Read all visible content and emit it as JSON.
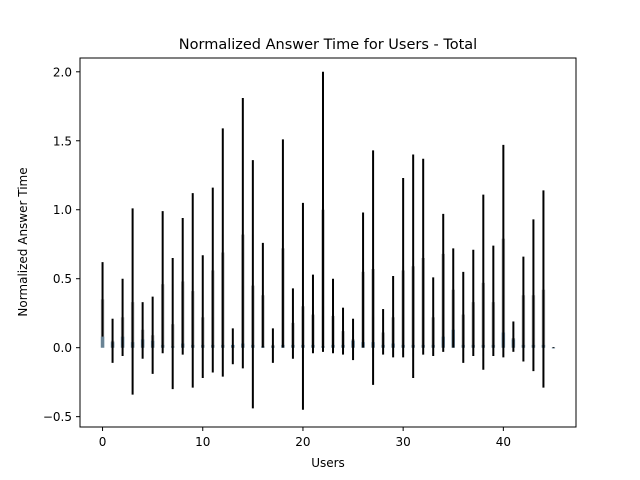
{
  "chart_data": {
    "type": "bar",
    "title": "Normalized Answer Time for Users - Total",
    "xlabel": "Users",
    "ylabel": "Normalized Answer Time",
    "xlim": [
      -2.25,
      47.25
    ],
    "ylim": [
      -0.575,
      2.1
    ],
    "xticks": [
      0,
      10,
      20,
      30,
      40
    ],
    "xtick_labels": [
      "0",
      "10",
      "20",
      "30",
      "40"
    ],
    "yticks": [
      -0.5,
      0.0,
      0.5,
      1.0,
      1.5,
      2.0
    ],
    "ytick_labels": [
      "−0.5",
      "0.0",
      "0.5",
      "1.0",
      "1.5",
      "2.0"
    ],
    "grid": false,
    "bar_color": "#4c8ab5",
    "errorbar_color": "#000000",
    "series": [
      {
        "x": [
          0,
          1,
          2,
          3,
          4,
          5,
          6,
          7,
          8,
          9,
          10,
          11,
          12,
          13,
          14,
          15,
          16,
          17,
          18,
          19,
          20,
          21,
          22,
          23,
          24,
          25,
          26,
          27,
          28,
          29,
          30,
          31,
          32,
          33,
          34,
          35,
          36,
          37,
          38,
          39,
          40,
          41,
          42,
          43,
          44,
          45
        ],
        "values": [
          0.08,
          0.04,
          0.08,
          0.04,
          0.06,
          0.05,
          0.02,
          0.01,
          0.03,
          0.02,
          0.02,
          0.02,
          0.02,
          0.02,
          0.03,
          0.02,
          0.01,
          0.01,
          0.02,
          0.02,
          0.02,
          0.02,
          0.01,
          0.02,
          0.02,
          0.05,
          0.04,
          0.04,
          0.02,
          0.03,
          0.02,
          0.02,
          0.02,
          0.02,
          0.08,
          0.13,
          0.02,
          0.02,
          0.02,
          0.02,
          0.11,
          0.06,
          0.02,
          0.02,
          0.02,
          0.0
        ],
        "error_low": [
          0.08,
          -0.11,
          -0.06,
          -0.34,
          -0.08,
          -0.19,
          -0.04,
          -0.3,
          -0.05,
          -0.29,
          -0.22,
          -0.18,
          -0.21,
          -0.12,
          -0.15,
          -0.44,
          0.0,
          -0.11,
          0.0,
          -0.08,
          -0.45,
          -0.04,
          -0.03,
          -0.04,
          -0.05,
          -0.09,
          0.0,
          -0.27,
          -0.05,
          -0.07,
          -0.07,
          -0.22,
          -0.05,
          -0.06,
          -0.03,
          0.0,
          -0.11,
          -0.06,
          -0.16,
          -0.06,
          -0.07,
          -0.03,
          -0.1,
          -0.17,
          -0.29,
          0.0
        ],
        "error_high": [
          0.62,
          0.21,
          0.5,
          1.01,
          0.33,
          0.37,
          0.99,
          0.65,
          0.94,
          1.12,
          0.67,
          1.16,
          1.59,
          0.14,
          1.81,
          1.36,
          0.76,
          0.14,
          1.51,
          0.43,
          1.05,
          0.53,
          2.0,
          0.5,
          0.29,
          0.21,
          0.98,
          1.43,
          0.28,
          0.52,
          1.23,
          1.4,
          1.37,
          0.51,
          0.97,
          0.72,
          0.55,
          0.71,
          1.11,
          0.74,
          1.47,
          0.19,
          0.66,
          0.93,
          1.14,
          0.0
        ],
        "error_mid": [
          0.35,
          0.05,
          0.22,
          0.33,
          0.13,
          0.09,
          0.46,
          0.17,
          0.48,
          0.41,
          0.22,
          0.56,
          0.69,
          0.01,
          0.82,
          0.45,
          0.38,
          0.02,
          0.72,
          0.18,
          0.3,
          0.24,
          1.0,
          0.23,
          0.12,
          0.06,
          0.55,
          0.57,
          0.11,
          0.22,
          0.56,
          0.59,
          0.65,
          0.22,
          0.68,
          0.42,
          0.24,
          0.33,
          0.47,
          0.33,
          0.79,
          0.07,
          0.38,
          0.38,
          0.42,
          0.0
        ]
      }
    ]
  }
}
